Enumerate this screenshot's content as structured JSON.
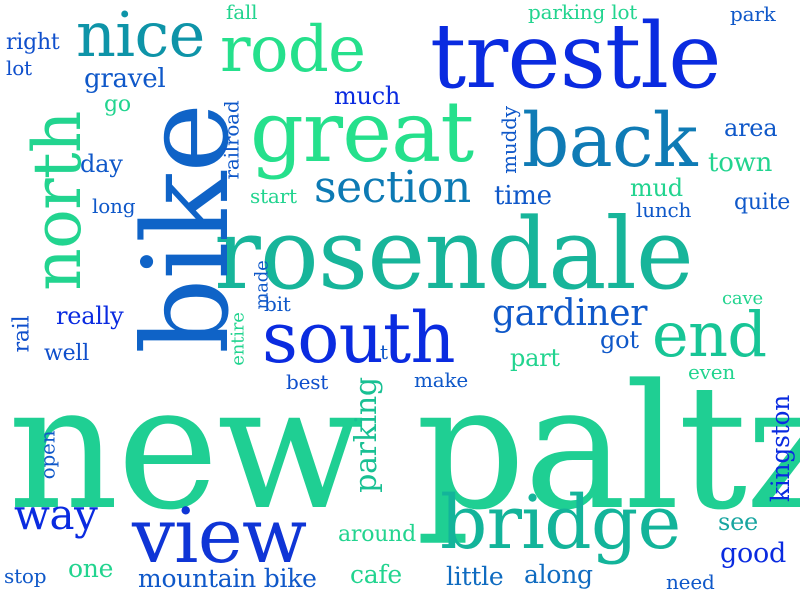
{
  "word_cloud": {
    "words": [
      {
        "text": "new paltz",
        "color": "#1fcf93"
      },
      {
        "text": "rosendale",
        "color": "#17b59a"
      },
      {
        "text": "bike",
        "color": "#0f63c7"
      },
      {
        "text": "trestle",
        "color": "#0a2be0"
      },
      {
        "text": "view",
        "color": "#0f35d6"
      },
      {
        "text": "bridge",
        "color": "#13b49a"
      },
      {
        "text": "great",
        "color": "#25e08c"
      },
      {
        "text": "south",
        "color": "#0a2be0"
      },
      {
        "text": "north",
        "color": "#22d48f"
      },
      {
        "text": "back",
        "color": "#0f7bb5"
      },
      {
        "text": "rode",
        "color": "#25e08c"
      },
      {
        "text": "nice",
        "color": "#0e94a8"
      },
      {
        "text": "end",
        "color": "#17c596"
      },
      {
        "text": "section",
        "color": "#0d7ab4"
      },
      {
        "text": "gardiner",
        "color": "#0f58c9"
      },
      {
        "text": "way",
        "color": "#0a2be0"
      },
      {
        "text": "parking",
        "color": "#19c093"
      },
      {
        "text": "mountain bike",
        "color": "#0f58c9"
      },
      {
        "text": "kingston",
        "color": "#0a2be0"
      },
      {
        "text": "good",
        "color": "#0a2be0"
      },
      {
        "text": "see",
        "color": "#17a5a0"
      },
      {
        "text": "cafe",
        "color": "#22d48f"
      },
      {
        "text": "little",
        "color": "#0f6bc0"
      },
      {
        "text": "along",
        "color": "#0f6bc0"
      },
      {
        "text": "one",
        "color": "#22d48f"
      },
      {
        "text": "around",
        "color": "#22d48f"
      },
      {
        "text": "stop",
        "color": "#0f58c9"
      },
      {
        "text": "need",
        "color": "#0f58c9"
      },
      {
        "text": "open",
        "color": "#0f58c9"
      },
      {
        "text": "well",
        "color": "#0f4fcc"
      },
      {
        "text": "rail",
        "color": "#0f4fcc"
      },
      {
        "text": "really",
        "color": "#0a2be0"
      },
      {
        "text": "best",
        "color": "#0f4fcc"
      },
      {
        "text": "make",
        "color": "#0f58c9"
      },
      {
        "text": "part",
        "color": "#22d48f"
      },
      {
        "text": "got",
        "color": "#0f58c9"
      },
      {
        "text": "even",
        "color": "#22d48f"
      },
      {
        "text": "cave",
        "color": "#22d48f"
      },
      {
        "text": "entire",
        "color": "#22d48f"
      },
      {
        "text": "made",
        "color": "#0f58c9"
      },
      {
        "text": "bit",
        "color": "#0f58c9"
      },
      {
        "text": "lunch",
        "color": "#0f58c9"
      },
      {
        "text": "quite",
        "color": "#0f58c9"
      },
      {
        "text": "mud",
        "color": "#22d48f"
      },
      {
        "text": "time",
        "color": "#0f58c9"
      },
      {
        "text": "start",
        "color": "#22d48f"
      },
      {
        "text": "long",
        "color": "#0f58c9"
      },
      {
        "text": "day",
        "color": "#0f58c9"
      },
      {
        "text": "railroad",
        "color": "#0f58c9"
      },
      {
        "text": "muddy",
        "color": "#0f58c9"
      },
      {
        "text": "town",
        "color": "#22d48f"
      },
      {
        "text": "area",
        "color": "#0f58c9"
      },
      {
        "text": "much",
        "color": "#0a2be0"
      },
      {
        "text": "gravel",
        "color": "#0f58c9"
      },
      {
        "text": "go",
        "color": "#22d48f"
      },
      {
        "text": "right",
        "color": "#0f4fcc"
      },
      {
        "text": "lot",
        "color": "#0f4fcc"
      },
      {
        "text": "fall",
        "color": "#22d48f"
      },
      {
        "text": "parking lot",
        "color": "#22d48f"
      },
      {
        "text": "park",
        "color": "#0f58c9"
      },
      {
        "text": "t",
        "color": "#0f58c9"
      }
    ]
  }
}
